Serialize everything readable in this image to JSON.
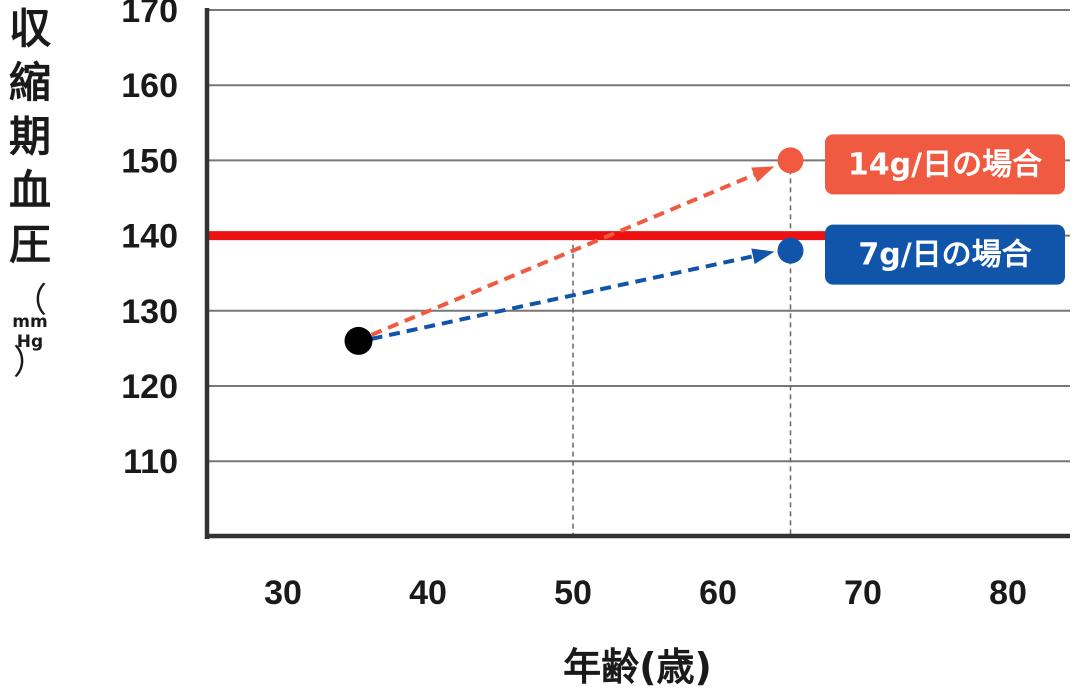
{
  "chart_data": {
    "type": "scatter",
    "ylabel": "収縮期血圧",
    "ylabel_chars": [
      "収",
      "縮",
      "期",
      "血",
      "圧"
    ],
    "ylabel_unit": "（mmHg）",
    "ylabel_unit_parts": [
      "（",
      "mm",
      "Hg",
      "）"
    ],
    "xlabel": "年齢(歳)",
    "xlim": [
      25,
      83
    ],
    "ylim": [
      100,
      170
    ],
    "x_ticks": [
      30,
      40,
      50,
      60,
      70,
      80
    ],
    "y_ticks": [
      110,
      120,
      130,
      140,
      150,
      160,
      170
    ],
    "grid": "horizontal",
    "reference_line": {
      "y": 140,
      "color": "#ee1111"
    },
    "start_point": {
      "x": 35,
      "y": 126,
      "color": "#000000"
    },
    "series": [
      {
        "name": "14g/日の場合",
        "start": [
          35,
          126
        ],
        "end": [
          65,
          150
        ],
        "color": "#f05a40"
      },
      {
        "name": "7g/日の場合",
        "start": [
          35,
          126
        ],
        "end": [
          65,
          138
        ],
        "color": "#1155aa"
      }
    ],
    "guide_lines": [
      {
        "x": 50,
        "y": 140
      },
      {
        "x": 65,
        "y": 150
      }
    ]
  }
}
